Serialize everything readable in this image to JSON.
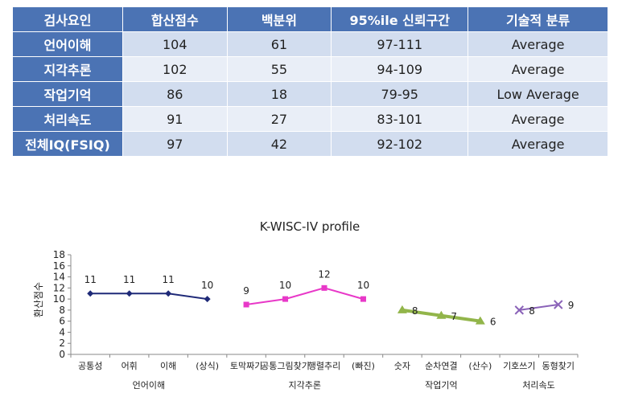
{
  "table": {
    "headers": [
      "검사요인",
      "합산점수",
      "백분위",
      "95%ile 신뢰구간",
      "기술적 분류"
    ],
    "rows": [
      [
        "언어이해",
        "104",
        "61",
        "97-111",
        "Average"
      ],
      [
        "지각추론",
        "102",
        "55",
        "94-109",
        "Average"
      ],
      [
        "작업기억",
        "86",
        "18",
        "79-95",
        "Low Average"
      ],
      [
        "처리속도",
        "91",
        "27",
        "83-101",
        "Average"
      ],
      [
        "전체IQ(FSIQ)",
        "97",
        "42",
        "92-102",
        "Average"
      ]
    ]
  },
  "chart_data": {
    "type": "line",
    "title": "K-WISC-IV  profile",
    "ylabel": "환산점수",
    "ylim": [
      0,
      18
    ],
    "yticks": [
      0,
      2,
      4,
      6,
      8,
      10,
      12,
      14,
      16,
      18
    ],
    "categories": [
      "공통성",
      "어휘",
      "이해",
      "(상식)",
      "토막짜기",
      "공통그림찾기",
      "행렬추리",
      "(빠진)",
      "숫자",
      "순차연결",
      "(산수)",
      "기호쓰기",
      "동형찾기"
    ],
    "groups": [
      {
        "label": "언어이해",
        "color": "#1f2a78",
        "marker": "diamond",
        "indices": [
          0,
          1,
          2,
          3
        ]
      },
      {
        "label": "지각추론",
        "color": "#e838c8",
        "marker": "square",
        "indices": [
          4,
          5,
          6,
          7
        ]
      },
      {
        "label": "작업기억",
        "color": "#92b54a",
        "marker": "triangle",
        "indices": [
          8,
          9,
          10
        ]
      },
      {
        "label": "처리속도",
        "color": "#8a62b8",
        "marker": "x",
        "indices": [
          11,
          12
        ]
      }
    ],
    "values": [
      11,
      11,
      11,
      10,
      9,
      10,
      12,
      10,
      8,
      7,
      6,
      8,
      9
    ],
    "grid": false,
    "legend": "none"
  }
}
